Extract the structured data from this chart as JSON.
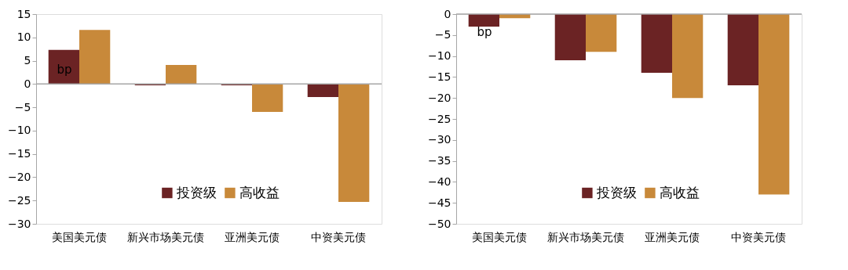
{
  "chart_data": [
    {
      "type": "bar",
      "categories": [
        "美国美元债",
        "新兴市场美元债",
        "亚洲美元债",
        "中资美元债"
      ],
      "series": [
        {
          "name": "投资级",
          "color": "#6b2324",
          "values": [
            7.3,
            -0.3,
            -0.3,
            -2.8
          ]
        },
        {
          "name": "高收益",
          "color": "#c8893a",
          "values": [
            11.6,
            4.1,
            -6.0,
            -25.3
          ]
        }
      ],
      "ylim": [
        -30,
        15
      ],
      "yticks": [
        -30,
        -25,
        -20,
        -15,
        -10,
        -5,
        0,
        5,
        10,
        15
      ],
      "annotations": [
        "bp"
      ],
      "legend": "bottom",
      "grid": false,
      "ref_lines": [
        {
          "axis": "y",
          "value": 0,
          "color": "#a6a6a6"
        }
      ]
    },
    {
      "type": "bar",
      "categories": [
        "美国美元债",
        "新兴市场美元债",
        "亚洲美元债",
        "中资美元债"
      ],
      "series": [
        {
          "name": "投资级",
          "color": "#6b2324",
          "values": [
            -3.0,
            -11.0,
            -14.0,
            -17.0
          ]
        },
        {
          "name": "高收益",
          "color": "#c8893a",
          "values": [
            -1.0,
            -9.0,
            -20.0,
            -43.0
          ]
        }
      ],
      "ylim": [
        -50,
        0
      ],
      "yticks": [
        -50,
        -45,
        -40,
        -35,
        -30,
        -25,
        -20,
        -15,
        -10,
        -5,
        0
      ],
      "annotations": [
        "bp"
      ],
      "legend": "bottom",
      "grid": false,
      "ref_lines": [
        {
          "axis": "y",
          "value": 0,
          "color": "#a6a6a6"
        }
      ]
    }
  ]
}
